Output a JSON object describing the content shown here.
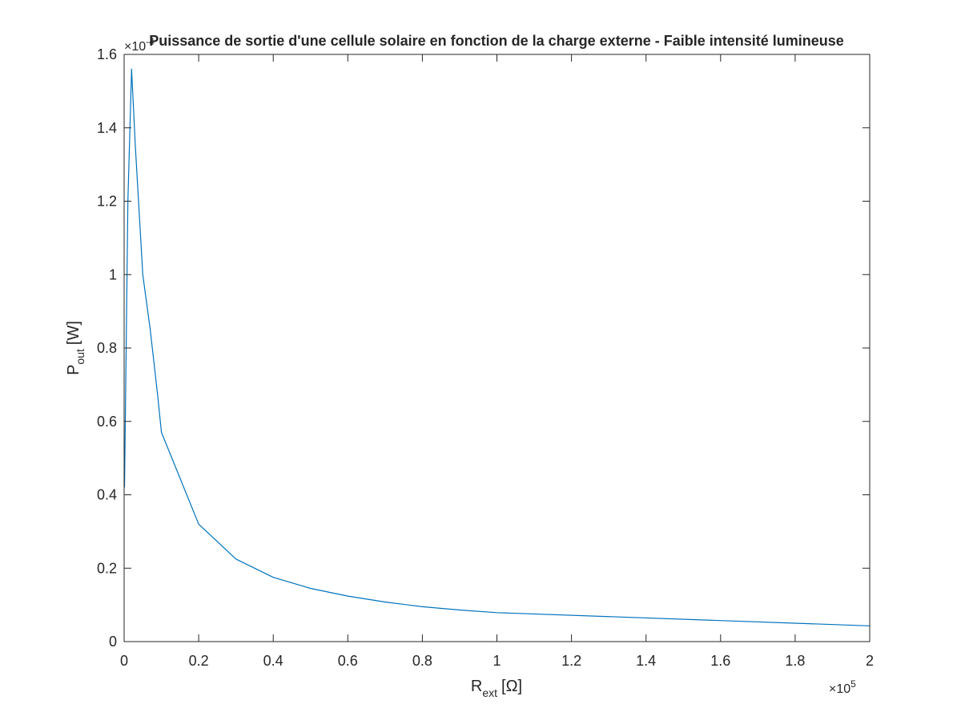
{
  "chart_data": {
    "type": "line",
    "title": "Puissance de sortie d'une cellule solaire en fonction de la charge externe - Faible intensité lumineuse",
    "xlabel": {
      "main": "R",
      "sub": "ext",
      "unit": "[Ω]"
    },
    "ylabel": {
      "main": "P",
      "sub": "out",
      "unit": "[W]"
    },
    "x_multiplier": {
      "base": "×10",
      "exp": "5"
    },
    "y_multiplier": {
      "base": "×10",
      "exp": "-4"
    },
    "xlim": [
      0,
      2
    ],
    "ylim": [
      0,
      1.6
    ],
    "x_ticks": [
      0,
      0.2,
      0.4,
      0.6,
      0.8,
      1,
      1.2,
      1.4,
      1.6,
      1.8,
      2
    ],
    "x_tick_labels": [
      "0",
      "0.2",
      "0.4",
      "0.6",
      "0.8",
      "1",
      "1.2",
      "1.4",
      "1.6",
      "1.8",
      "2"
    ],
    "y_ticks": [
      0,
      0.2,
      0.4,
      0.6,
      0.8,
      1,
      1.2,
      1.4,
      1.6
    ],
    "y_tick_labels": [
      "0",
      "0.2",
      "0.4",
      "0.6",
      "0.8",
      "1",
      "1.2",
      "1.4",
      "1.6"
    ],
    "grid": false,
    "box": true,
    "series": [
      {
        "color": "#0072bd",
        "x": [
          0.001,
          0.01,
          0.02,
          0.03,
          0.05,
          0.07,
          0.09,
          0.1,
          0.2,
          0.3,
          0.4,
          0.5,
          0.6,
          0.7,
          0.8,
          0.9,
          1.0,
          2.0
        ],
        "y": [
          0.42,
          1.2,
          1.56,
          1.35,
          1.0,
          0.85,
          0.67,
          0.57,
          0.32,
          0.225,
          0.175,
          0.145,
          0.124,
          0.108,
          0.095,
          0.086,
          0.079,
          0.043
        ]
      }
    ]
  }
}
